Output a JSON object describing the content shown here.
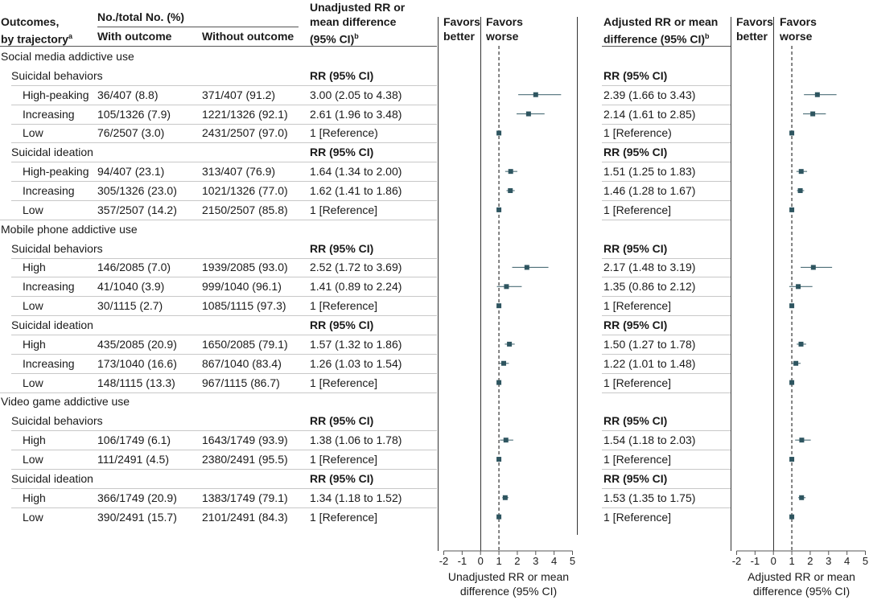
{
  "headers": {
    "outcomes": "Outcomes,",
    "by_trajectory": "by trajectory",
    "sup_a": "a",
    "no_total": "No./total No. (%)",
    "with_outcome": "With outcome",
    "without_outcome": "Without outcome",
    "unadj_line1": "Unadjusted RR or",
    "unadj_line2": "mean difference",
    "unadj_line3": "(95% CI)",
    "sup_b": "b",
    "favors": "Favors",
    "better": "better",
    "worse": "worse",
    "adj_line1": "Adjusted RR or mean",
    "adj_line2": "difference (95% CI)"
  },
  "rows": [
    {
      "kind": "section",
      "label": "Social media addictive use"
    },
    {
      "kind": "subsection",
      "label": "Suicidal behaviors",
      "unadj": "RR (95% CI)",
      "adj": "RR (95% CI)"
    },
    {
      "kind": "data",
      "label": "High-peaking",
      "with": "36/407 (8.8)",
      "without": "371/407 (91.2)",
      "unadj": "3.00 (2.05 to 4.38)",
      "adj": "2.39 (1.66 to 3.43)"
    },
    {
      "kind": "data",
      "label": "Increasing",
      "with": "105/1326 (7.9)",
      "without": "1221/1326 (92.1)",
      "unadj": "2.61 (1.96 to 3.48)",
      "adj": "2.14 (1.61 to 2.85)"
    },
    {
      "kind": "data",
      "label": "Low",
      "with": "76/2507 (3.0)",
      "without": "2431/2507 (97.0)",
      "unadj": "1 [Reference)",
      "adj": "1 [Reference)"
    },
    {
      "kind": "subsection",
      "label": "Suicidal ideation",
      "unadj": "RR (95% CI)",
      "adj": "RR (95% CI)"
    },
    {
      "kind": "data",
      "label": "High-peaking",
      "with": "94/407 (23.1)",
      "without": "313/407 (76.9)",
      "unadj": "1.64 (1.34 to 2.00)",
      "adj": "1.51 (1.25 to 1.83)"
    },
    {
      "kind": "data",
      "label": "Increasing",
      "with": "305/1326 (23.0)",
      "without": "1021/1326 (77.0)",
      "unadj": "1.62 (1.41 to 1.86)",
      "adj": "1.46 (1.28 to 1.67)"
    },
    {
      "kind": "data",
      "label": "Low",
      "with": "357/2507 (14.2)",
      "without": "2150/2507 (85.8)",
      "unadj": "1 [Reference]",
      "adj": "1 [Reference]"
    },
    {
      "kind": "section",
      "label": "Mobile phone addictive use"
    },
    {
      "kind": "subsection",
      "label": "Suicidal behaviors",
      "unadj": "RR (95% CI)",
      "adj": "RR (95% CI)"
    },
    {
      "kind": "data",
      "label": "High",
      "with": "146/2085 (7.0)",
      "without": "1939/2085 (93.0)",
      "unadj": "2.52 (1.72 to 3.69)",
      "adj": "2.17 (1.48 to 3.19)"
    },
    {
      "kind": "data",
      "label": "Increasing",
      "with": "41/1040 (3.9)",
      "without": "999/1040 (96.1)",
      "unadj": "1.41 (0.89 to 2.24)",
      "adj": "1.35 (0.86 to 2.12)"
    },
    {
      "kind": "data",
      "label": "Low",
      "with": "30/1115 (2.7)",
      "without": "1085/1115 (97.3)",
      "unadj": "1 [Reference]",
      "adj": "1 [Reference]"
    },
    {
      "kind": "subsection",
      "label": "Suicidal ideation",
      "unadj": "RR (95% CI)",
      "adj": "RR (95% CI)"
    },
    {
      "kind": "data",
      "label": "High",
      "with": "435/2085 (20.9)",
      "without": "1650/2085 (79.1)",
      "unadj": "1.57 (1.32 to 1.86)",
      "adj": "1.50 (1.27 to 1.78)"
    },
    {
      "kind": "data",
      "label": "Increasing",
      "with": "173/1040 (16.6)",
      "without": "867/1040 (83.4)",
      "unadj": "1.26 (1.03 to 1.54)",
      "adj": "1.22 (1.01 to 1.48)"
    },
    {
      "kind": "data",
      "label": "Low",
      "with": "148/1115 (13.3)",
      "without": "967/1115 (86.7)",
      "unadj": "1 [Reference]",
      "adj": "1 [Reference]"
    },
    {
      "kind": "section",
      "label": "Video game addictive use"
    },
    {
      "kind": "subsection",
      "label": "Suicidal behaviors",
      "unadj": "RR (95% CI)",
      "adj": "RR (95% CI)"
    },
    {
      "kind": "data",
      "label": "High",
      "with": "106/1749 (6.1)",
      "without": "1643/1749 (93.9)",
      "unadj": "1.38 (1.06 to 1.78)",
      "adj": "1.54 (1.18 to 2.03)"
    },
    {
      "kind": "data",
      "label": "Low",
      "with": "111/2491 (4.5)",
      "without": "2380/2491 (95.5)",
      "unadj": "1 [Reference]",
      "adj": "1 [Reference]"
    },
    {
      "kind": "subsection",
      "label": "Suicidal ideation",
      "unadj": "RR (95% CI)",
      "adj": "RR (95% CI)"
    },
    {
      "kind": "data",
      "label": "High",
      "with": "366/1749 (20.9)",
      "without": "1383/1749 (79.1)",
      "unadj": "1.34 (1.18 to 1.52)",
      "adj": "1.53 (1.35 to 1.75)"
    },
    {
      "kind": "data",
      "label": "Low",
      "with": "390/2491 (15.7)",
      "without": "2101/2491 (84.3)",
      "unadj": "1 [Reference]",
      "adj": "1 [Reference]"
    }
  ],
  "chart_data": [
    {
      "type": "scatter",
      "title": "",
      "xlabel": "Unadjusted RR or mean difference (95% CI)",
      "ylabel": "",
      "xlim": [
        -2,
        5
      ],
      "xticks": [
        -2,
        -1,
        0,
        1,
        2,
        3,
        4,
        5
      ],
      "reference_line": 1,
      "grid": false,
      "categories": [
        "Social media / Suicidal behaviors / High-peaking",
        "Social media / Suicidal behaviors / Increasing",
        "Social media / Suicidal behaviors / Low",
        "Social media / Suicidal ideation / High-peaking",
        "Social media / Suicidal ideation / Increasing",
        "Social media / Suicidal ideation / Low",
        "Mobile phone / Suicidal behaviors / High",
        "Mobile phone / Suicidal behaviors / Increasing",
        "Mobile phone / Suicidal behaviors / Low",
        "Mobile phone / Suicidal ideation / High",
        "Mobile phone / Suicidal ideation / Increasing",
        "Mobile phone / Suicidal ideation / Low",
        "Video game / Suicidal behaviors / High",
        "Video game / Suicidal behaviors / Low",
        "Video game / Suicidal ideation / High",
        "Video game / Suicidal ideation / Low"
      ],
      "values": [
        3.0,
        2.61,
        1,
        1.64,
        1.62,
        1,
        2.52,
        1.41,
        1,
        1.57,
        1.26,
        1,
        1.38,
        1,
        1.34,
        1
      ],
      "lower": [
        2.05,
        1.96,
        1,
        1.34,
        1.41,
        1,
        1.72,
        0.89,
        1,
        1.32,
        1.03,
        1,
        1.06,
        1,
        1.18,
        1
      ],
      "upper": [
        4.38,
        3.48,
        1,
        2.0,
        1.86,
        1,
        3.69,
        2.24,
        1,
        1.86,
        1.54,
        1,
        1.78,
        1,
        1.52,
        1
      ],
      "row_index": [
        2,
        3,
        4,
        6,
        7,
        8,
        11,
        12,
        13,
        15,
        16,
        17,
        20,
        21,
        23,
        24
      ],
      "colors": {
        "marker": "#2e5560",
        "ci": "#4d6f78",
        "axis": "#555555",
        "reference": "#333333"
      }
    },
    {
      "type": "scatter",
      "title": "",
      "xlabel": "Adjusted RR or mean difference (95% CI)",
      "ylabel": "",
      "xlim": [
        -2,
        5
      ],
      "xticks": [
        -2,
        -1,
        0,
        1,
        2,
        3,
        4,
        5
      ],
      "reference_line": 1,
      "grid": false,
      "categories": [
        "Social media / Suicidal behaviors / High-peaking",
        "Social media / Suicidal behaviors / Increasing",
        "Social media / Suicidal behaviors / Low",
        "Social media / Suicidal ideation / High-peaking",
        "Social media / Suicidal ideation / Increasing",
        "Social media / Suicidal ideation / Low",
        "Mobile phone / Suicidal behaviors / High",
        "Mobile phone / Suicidal behaviors / Increasing",
        "Mobile phone / Suicidal behaviors / Low",
        "Mobile phone / Suicidal ideation / High",
        "Mobile phone / Suicidal ideation / Increasing",
        "Mobile phone / Suicidal ideation / Low",
        "Video game / Suicidal behaviors / High",
        "Video game / Suicidal behaviors / Low",
        "Video game / Suicidal ideation / High",
        "Video game / Suicidal ideation / Low"
      ],
      "values": [
        2.39,
        2.14,
        1,
        1.51,
        1.46,
        1,
        2.17,
        1.35,
        1,
        1.5,
        1.22,
        1,
        1.54,
        1,
        1.53,
        1
      ],
      "lower": [
        1.66,
        1.61,
        1,
        1.25,
        1.28,
        1,
        1.48,
        0.86,
        1,
        1.27,
        1.01,
        1,
        1.18,
        1,
        1.35,
        1
      ],
      "upper": [
        3.43,
        2.85,
        1,
        1.83,
        1.67,
        1,
        3.19,
        2.12,
        1,
        1.78,
        1.48,
        1,
        2.03,
        1,
        1.75,
        1
      ],
      "row_index": [
        2,
        3,
        4,
        6,
        7,
        8,
        11,
        12,
        13,
        15,
        16,
        17,
        20,
        21,
        23,
        24
      ],
      "colors": {
        "marker": "#2e5560",
        "ci": "#4d6f78",
        "axis": "#555555",
        "reference": "#333333"
      }
    }
  ],
  "axis_titles": {
    "unadj_line1": "Unadjusted RR or mean",
    "unadj_line2": "difference (95% CI)",
    "adj_line1": "Adjusted RR or mean",
    "adj_line2": "difference (95% CI)"
  }
}
